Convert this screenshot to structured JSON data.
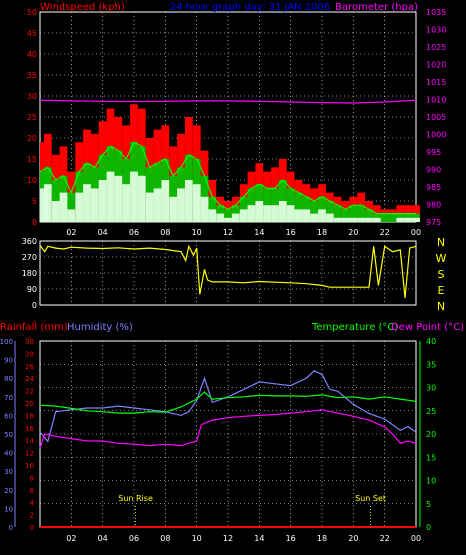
{
  "colors": {
    "background": "#000000",
    "grid": "#ffffff",
    "wind_gust": "#ff0000",
    "wind_avg": "#00c000",
    "wind_low": "#e0ffe0",
    "barometer": "#ff00ff",
    "direction": "#ffff00",
    "humidity": "#8080ff",
    "temperature": "#00ff00",
    "dewpoint": "#ff00ff",
    "rainfall": "#ff0000",
    "sun_markers": "#ffff00",
    "title": "#0000ff",
    "left_axis_text": "#ff0000",
    "right_axis_text": "#ff00ff",
    "humidity_axis_text": "#8080ff",
    "temp_axis_text": "#00ff00",
    "dir_letters": "#ffff00"
  },
  "header": {
    "left_label": "Windspeed (kph)",
    "title": "24 hour graph day:  31 JAN 2006",
    "right_label": "Barometer (hpa)"
  },
  "lower_header": {
    "rain_label": "Rainfall (mm)",
    "humidity_label": "Humidity (%)",
    "temp_label": "Temperature (°C)",
    "dew_label": "Dew Point (°C)"
  },
  "annotations": {
    "sunrise": "Sun Rise",
    "sunset": "Sun Set"
  },
  "direction_letters": [
    "N",
    "W",
    "S",
    "E",
    "N"
  ],
  "chart_data": [
    {
      "type": "line",
      "title": "24 hour graph day:  31 JAN 2006",
      "x_ticks": [
        "02",
        "04",
        "06",
        "08",
        "10",
        "12",
        "14",
        "16",
        "18",
        "20",
        "22",
        "00"
      ],
      "xlim": [
        0,
        24
      ],
      "ylabel": "Windspeed (kph)",
      "ylim": [
        0,
        50
      ],
      "y_ticks": [
        0,
        5,
        10,
        15,
        20,
        25,
        30,
        35,
        40,
        45,
        50
      ],
      "y2label": "Barometer (hpa)",
      "y2lim": [
        975,
        1035
      ],
      "y2_ticks": [
        975,
        980,
        985,
        990,
        995,
        1000,
        1005,
        1010,
        1015,
        1020,
        1025,
        1030,
        1035
      ],
      "grid": true,
      "series": [
        {
          "name": "Wind gust",
          "color": "#ff0000",
          "x": [
            0,
            0.5,
            1,
            1.5,
            2,
            2.5,
            3,
            3.5,
            4,
            4.5,
            5,
            5.5,
            6,
            6.5,
            7,
            7.5,
            8,
            8.5,
            9,
            9.5,
            10,
            10.5,
            11,
            11.5,
            12,
            12.5,
            13,
            13.5,
            14,
            14.5,
            15,
            15.5,
            16,
            16.5,
            17,
            17.5,
            18,
            18.5,
            19,
            19.5,
            20,
            20.5,
            21,
            21.5,
            22,
            22.5,
            23,
            23.5,
            24
          ],
          "values": [
            19,
            21,
            16,
            18,
            12,
            19,
            22,
            21,
            24,
            27,
            25,
            23,
            28,
            27,
            20,
            22,
            23,
            18,
            21,
            25,
            23,
            17,
            10,
            6,
            5,
            6,
            9,
            12,
            14,
            12,
            13,
            15,
            12,
            10,
            9,
            8,
            9,
            7,
            6,
            5,
            6,
            7,
            5,
            4,
            3,
            3,
            4,
            4,
            4
          ]
        },
        {
          "name": "Wind average",
          "color": "#00c000",
          "x": [
            0,
            0.5,
            1,
            1.5,
            2,
            2.5,
            3,
            3.5,
            4,
            4.5,
            5,
            5.5,
            6,
            6.5,
            7,
            7.5,
            8,
            8.5,
            9,
            9.5,
            10,
            10.5,
            11,
            11.5,
            12,
            12.5,
            13,
            13.5,
            14,
            14.5,
            15,
            15.5,
            16,
            16.5,
            17,
            17.5,
            18,
            18.5,
            19,
            19.5,
            20,
            20.5,
            21,
            21.5,
            22,
            22.5,
            23,
            23.5,
            24
          ],
          "values": [
            12,
            13,
            10,
            11,
            7,
            12,
            14,
            13,
            16,
            18,
            17,
            15,
            19,
            18,
            13,
            14,
            15,
            11,
            13,
            16,
            15,
            11,
            6,
            4,
            3,
            4,
            6,
            8,
            9,
            8,
            8,
            10,
            8,
            7,
            6,
            5,
            6,
            5,
            4,
            3,
            4,
            4,
            3,
            2,
            2,
            2,
            2,
            2,
            2
          ]
        },
        {
          "name": "Wind low",
          "color": "#e0ffe0",
          "x": [
            0,
            0.5,
            1,
            1.5,
            2,
            2.5,
            3,
            3.5,
            4,
            4.5,
            5,
            5.5,
            6,
            6.5,
            7,
            7.5,
            8,
            8.5,
            9,
            9.5,
            10,
            10.5,
            11,
            11.5,
            12,
            12.5,
            13,
            13.5,
            14,
            14.5,
            15,
            15.5,
            16,
            16.5,
            17,
            17.5,
            18,
            18.5,
            19,
            19.5,
            20,
            20.5,
            21,
            21.5,
            22,
            22.5,
            23,
            23.5,
            24
          ],
          "values": [
            8,
            9,
            5,
            7,
            3,
            7,
            9,
            8,
            10,
            12,
            11,
            9,
            12,
            11,
            7,
            8,
            10,
            6,
            8,
            10,
            9,
            6,
            3,
            2,
            1,
            2,
            3,
            4,
            5,
            4,
            4,
            5,
            4,
            3,
            3,
            2,
            3,
            2,
            1,
            1,
            1,
            1,
            1,
            1,
            0,
            0,
            1,
            1,
            1
          ]
        },
        {
          "name": "Barometer",
          "axis": "right",
          "color": "#ff00ff",
          "x": [
            0,
            2,
            4,
            6,
            8,
            10,
            12,
            14,
            16,
            18,
            20,
            22,
            24
          ],
          "values": [
            1009.8,
            1009.6,
            1009.5,
            1009.4,
            1009.5,
            1009.6,
            1009.6,
            1009.5,
            1009.3,
            1009.1,
            1009.0,
            1009.3,
            1009.8
          ]
        }
      ]
    },
    {
      "type": "line",
      "x_ticks": [
        "02",
        "04",
        "06",
        "08",
        "10",
        "12",
        "14",
        "16",
        "18",
        "20",
        "22",
        "00"
      ],
      "xlim": [
        0,
        24
      ],
      "ylim": [
        0,
        360
      ],
      "y_ticks": [
        0,
        90,
        180,
        270,
        360
      ],
      "grid": true,
      "series": [
        {
          "name": "Wind direction",
          "color": "#ffff00",
          "x": [
            0,
            0.3,
            0.5,
            1,
            1.5,
            2,
            3,
            4,
            5,
            6,
            7,
            8,
            9,
            9.3,
            9.5,
            9.8,
            10,
            10.2,
            10.5,
            10.7,
            11,
            12,
            13,
            14,
            15,
            16,
            17,
            18,
            18.5,
            19,
            20,
            21,
            21.3,
            21.6,
            22,
            22.5,
            23,
            23.3,
            23.6,
            24
          ],
          "values": [
            335,
            300,
            330,
            320,
            315,
            325,
            320,
            318,
            322,
            315,
            320,
            312,
            300,
            250,
            330,
            280,
            320,
            60,
            200,
            140,
            130,
            130,
            125,
            132,
            128,
            125,
            120,
            110,
            100,
            100,
            100,
            100,
            330,
            110,
            330,
            300,
            310,
            40,
            320,
            330
          ]
        }
      ]
    },
    {
      "type": "line",
      "x_ticks": [
        "02",
        "04",
        "06",
        "08",
        "10",
        "12",
        "14",
        "16",
        "18",
        "20",
        "22",
        "00"
      ],
      "xlim": [
        0,
        24
      ],
      "ylabel": "Rainfall (mm)",
      "ylim": [
        0,
        30
      ],
      "y_ticks": [
        0,
        2,
        4,
        6,
        8,
        10,
        12,
        14,
        16,
        18,
        20,
        22,
        24,
        26,
        28,
        30
      ],
      "humidity_ticks": [
        0,
        10,
        20,
        30,
        40,
        50,
        60,
        70,
        80,
        90,
        100
      ],
      "y2label": "Temperature (°C)",
      "y2lim": [
        0,
        40
      ],
      "y2_ticks": [
        0,
        5,
        10,
        15,
        20,
        25,
        30,
        35,
        40
      ],
      "grid": true,
      "series": [
        {
          "name": "Rainfall",
          "color": "#ff0000",
          "x": [
            0,
            24
          ],
          "values": [
            0,
            0
          ]
        },
        {
          "name": "Humidity",
          "axis": "humidity",
          "color": "#8080ff",
          "x": [
            0,
            0.5,
            1,
            2,
            3,
            4,
            5,
            6,
            7,
            8,
            9,
            9.5,
            10,
            10.5,
            11,
            12,
            13,
            14,
            15,
            16,
            17,
            17.5,
            18,
            18.5,
            19,
            20,
            21,
            22,
            23,
            23.5,
            24
          ],
          "values": [
            51,
            46,
            62,
            63,
            64,
            64,
            65,
            64,
            63,
            62,
            60,
            62,
            68,
            80,
            67,
            70,
            74,
            78,
            77,
            76,
            80,
            84,
            82,
            74,
            73,
            66,
            61,
            58,
            52,
            54,
            51
          ]
        },
        {
          "name": "Temperature",
          "axis": "right",
          "color": "#00ff00",
          "x": [
            0,
            1,
            2,
            3,
            4,
            5,
            6,
            7,
            8,
            9,
            10,
            10.5,
            11,
            12,
            13,
            14,
            15,
            16,
            17,
            18,
            19,
            20,
            21,
            22,
            23,
            24
          ],
          "values": [
            26.2,
            26.0,
            25.5,
            25.0,
            24.8,
            24.5,
            24.5,
            24.8,
            24.7,
            25.8,
            27.5,
            29.0,
            27.5,
            27.8,
            28.0,
            28.3,
            28.2,
            28.2,
            28.1,
            28.4,
            27.8,
            28.0,
            27.5,
            28.0,
            27.5,
            27.0
          ]
        },
        {
          "name": "Dew Point",
          "axis": "right",
          "color": "#ff00ff",
          "x": [
            0,
            0.3,
            1,
            2,
            3,
            4,
            5,
            6,
            7,
            8,
            9,
            9.5,
            10,
            10.3,
            11,
            12,
            13,
            14,
            15,
            16,
            17,
            18,
            19,
            20,
            21,
            22,
            22.5,
            23,
            23.5,
            24
          ],
          "values": [
            17,
            20,
            19.5,
            19,
            18.5,
            18.5,
            18,
            17.8,
            17.5,
            17.8,
            17.5,
            18,
            18.5,
            22,
            23,
            23.5,
            23.8,
            24,
            24.2,
            24.5,
            24.8,
            25.2,
            24.5,
            23.8,
            23,
            21.5,
            20,
            18,
            18.5,
            18
          ]
        }
      ],
      "markers": [
        {
          "label": "Sun Rise",
          "x": 6.1
        },
        {
          "label": "Sun Set",
          "x": 21.1
        }
      ]
    }
  ]
}
